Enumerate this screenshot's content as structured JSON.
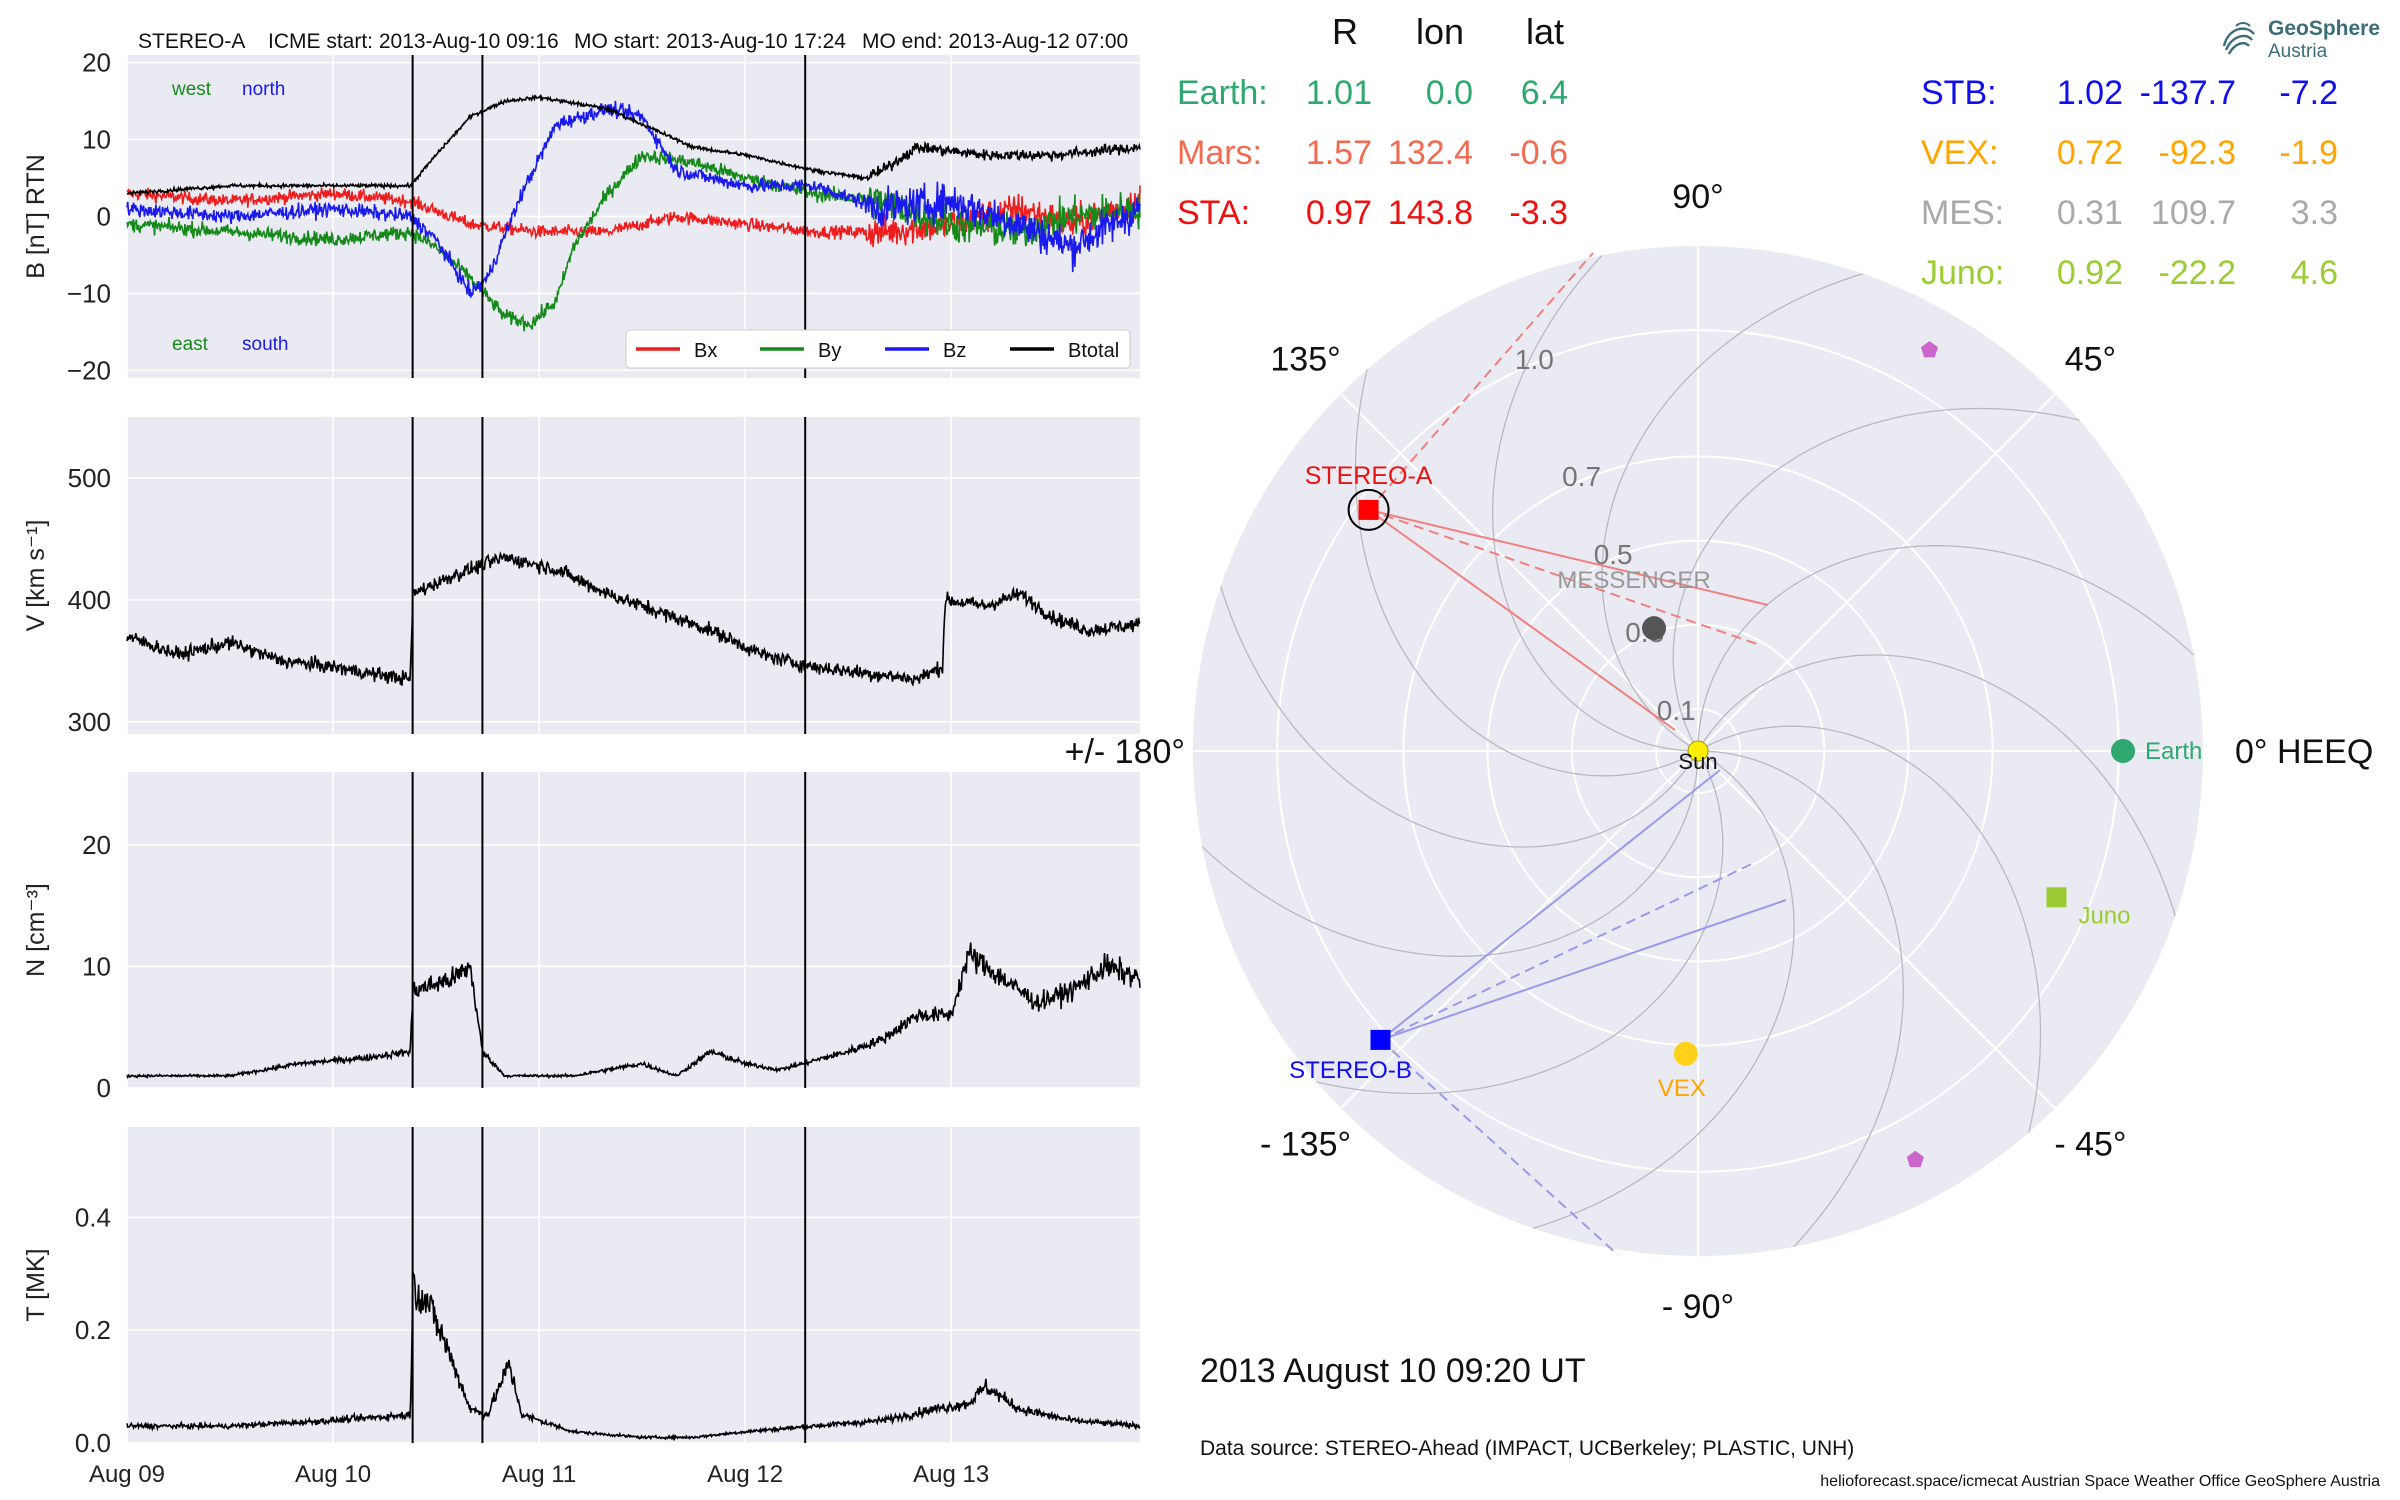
{
  "header": {
    "spacecraft": "STEREO-A",
    "icme_start": "ICME start: 2013-Aug-10 09:16",
    "mo_start": "MO start: 2013-Aug-10 17:24",
    "mo_end": "MO end: 2013-Aug-12 07:00"
  },
  "brand": {
    "name": "GeoSphere",
    "sub": "Austria"
  },
  "chart_data": [
    {
      "type": "line",
      "panel": "magnetic-field",
      "ylabel": "B [nT] RTN",
      "ylim": [
        -21,
        21
      ],
      "yticks": [
        "20",
        "10",
        "0",
        "−10",
        "−20"
      ],
      "ytick_values": [
        20,
        10,
        0,
        -10,
        -20
      ],
      "annotations": {
        "west": "west",
        "north": "north",
        "east": "east",
        "south": "south"
      },
      "legend": {
        "placement": "lower-right",
        "entries": [
          "Bx",
          "By",
          "Bz",
          "Btotal"
        ]
      },
      "x_range_days": [
        "2013-08-09 00:00",
        "2013-08-13 21:00"
      ],
      "event_lines": [
        "2013-08-10 09:16",
        "2013-08-10 17:24",
        "2013-08-12 07:00"
      ],
      "series": [
        {
          "name": "Bx",
          "color": "#ee1c1c",
          "anchors": [
            [
              0,
              3
            ],
            [
              12,
              2
            ],
            [
              24,
              3
            ],
            [
              33,
              2
            ],
            [
              40,
              -1
            ],
            [
              48,
              -2
            ],
            [
              56,
              -2
            ],
            [
              64,
              0
            ],
            [
              72,
              -1
            ],
            [
              80,
              -2
            ],
            [
              88,
              -2
            ],
            [
              96,
              -1
            ],
            [
              104,
              1
            ],
            [
              110,
              -1
            ],
            [
              118,
              2
            ]
          ]
        },
        {
          "name": "By",
          "color": "#158a1a",
          "anchors": [
            [
              0,
              -1
            ],
            [
              12,
              -2
            ],
            [
              24,
              -3
            ],
            [
              33,
              -2
            ],
            [
              36,
              -4
            ],
            [
              40,
              -8
            ],
            [
              44,
              -13
            ],
            [
              47,
              -14
            ],
            [
              50,
              -11
            ],
            [
              52,
              -4
            ],
            [
              56,
              3
            ],
            [
              60,
              8
            ],
            [
              66,
              7
            ],
            [
              72,
              5
            ],
            [
              80,
              3
            ],
            [
              88,
              2
            ],
            [
              96,
              -1
            ],
            [
              104,
              -2
            ],
            [
              110,
              0
            ],
            [
              118,
              1
            ]
          ]
        },
        {
          "name": "Bz",
          "color": "#1a1aee",
          "anchors": [
            [
              0,
              1
            ],
            [
              12,
              0
            ],
            [
              24,
              1
            ],
            [
              33,
              0
            ],
            [
              36,
              -3
            ],
            [
              40,
              -10
            ],
            [
              42,
              -8
            ],
            [
              46,
              3
            ],
            [
              50,
              12
            ],
            [
              56,
              14
            ],
            [
              60,
              13
            ],
            [
              64,
              6
            ],
            [
              72,
              4
            ],
            [
              80,
              4
            ],
            [
              88,
              1
            ],
            [
              96,
              2
            ],
            [
              104,
              -1
            ],
            [
              110,
              -4
            ],
            [
              118,
              1
            ]
          ]
        },
        {
          "name": "Btotal",
          "color": "#000000",
          "anchors": [
            [
              0,
              3
            ],
            [
              12,
              4
            ],
            [
              24,
              4
            ],
            [
              33,
              4
            ],
            [
              36,
              8
            ],
            [
              40,
              13
            ],
            [
              44,
              15
            ],
            [
              48,
              15.5
            ],
            [
              56,
              14
            ],
            [
              62,
              11
            ],
            [
              66,
              9
            ],
            [
              72,
              8
            ],
            [
              80,
              6
            ],
            [
              86,
              5
            ],
            [
              88,
              6
            ],
            [
              92,
              9
            ],
            [
              100,
              8
            ],
            [
              108,
              8
            ],
            [
              118,
              9
            ]
          ]
        }
      ]
    },
    {
      "type": "line",
      "panel": "speed",
      "ylabel": "V [km s⁻¹]",
      "ylim": [
        290,
        550
      ],
      "yticks": [
        "500",
        "400",
        "300"
      ],
      "ytick_values": [
        500,
        400,
        300
      ],
      "series": [
        {
          "name": "",
          "color": "#000000",
          "anchors": [
            [
              0,
              370
            ],
            [
              6,
              355
            ],
            [
              12,
              365
            ],
            [
              18,
              350
            ],
            [
              24,
              345
            ],
            [
              28,
              340
            ],
            [
              33,
              335
            ],
            [
              33.3,
              405
            ],
            [
              38,
              420
            ],
            [
              44,
              435
            ],
            [
              50,
              425
            ],
            [
              56,
              405
            ],
            [
              62,
              390
            ],
            [
              68,
              375
            ],
            [
              74,
              355
            ],
            [
              80,
              345
            ],
            [
              86,
              340
            ],
            [
              92,
              335
            ],
            [
              95,
              345
            ],
            [
              95.3,
              400
            ],
            [
              100,
              395
            ],
            [
              104,
              405
            ],
            [
              108,
              385
            ],
            [
              112,
              375
            ],
            [
              118,
              380
            ]
          ]
        }
      ]
    },
    {
      "type": "line",
      "panel": "density",
      "ylabel": "N [cm⁻³]",
      "ylim": [
        0,
        26
      ],
      "yticks": [
        "20",
        "10",
        "0"
      ],
      "ytick_values": [
        20,
        10,
        0
      ],
      "series": [
        {
          "name": "",
          "color": "#000000",
          "anchors": [
            [
              0,
              1
            ],
            [
              12,
              1
            ],
            [
              20,
              2
            ],
            [
              28,
              2.5
            ],
            [
              33,
              3
            ],
            [
              33.3,
              8
            ],
            [
              38,
              9
            ],
            [
              40,
              10
            ],
            [
              41.4,
              3
            ],
            [
              44,
              1
            ],
            [
              52,
              1
            ],
            [
              60,
              2
            ],
            [
              64,
              1
            ],
            [
              68,
              3
            ],
            [
              72,
              2
            ],
            [
              76,
              1.5
            ],
            [
              84,
              3
            ],
            [
              88,
              4
            ],
            [
              92,
              6
            ],
            [
              96,
              6
            ],
            [
              98,
              11
            ],
            [
              102,
              9
            ],
            [
              106,
              7
            ],
            [
              110,
              8
            ],
            [
              114,
              10
            ],
            [
              118,
              9
            ]
          ]
        }
      ]
    },
    {
      "type": "line",
      "panel": "temperature",
      "ylabel": "T [MK]",
      "ylim": [
        0,
        0.56
      ],
      "yticks": [
        "0.4",
        "0.2",
        "0.0"
      ],
      "ytick_values": [
        0.4,
        0.2,
        0.0
      ],
      "xticks": [
        "Aug 09",
        "Aug 10",
        "Aug 11",
        "Aug 12",
        "Aug 13"
      ],
      "xtick_hours": [
        0,
        24,
        48,
        72,
        96
      ],
      "series": [
        {
          "name": "",
          "color": "#000000",
          "anchors": [
            [
              0,
              0.03
            ],
            [
              12,
              0.03
            ],
            [
              24,
              0.04
            ],
            [
              33,
              0.05
            ],
            [
              33.3,
              0.28
            ],
            [
              35,
              0.25
            ],
            [
              37,
              0.18
            ],
            [
              40,
              0.06
            ],
            [
              42,
              0.05
            ],
            [
              44.5,
              0.14
            ],
            [
              46,
              0.05
            ],
            [
              52,
              0.02
            ],
            [
              60,
              0.01
            ],
            [
              66,
              0.01
            ],
            [
              72,
              0.02
            ],
            [
              80,
              0.03
            ],
            [
              88,
              0.04
            ],
            [
              94,
              0.06
            ],
            [
              98,
              0.07
            ],
            [
              100,
              0.1
            ],
            [
              104,
              0.06
            ],
            [
              110,
              0.04
            ],
            [
              118,
              0.03
            ]
          ]
        }
      ]
    },
    {
      "type": "scatter",
      "panel": "polar-positions",
      "rlim": [
        0,
        1.2
      ],
      "r_tick_labels": [
        "0.1",
        "0.3",
        "0.5",
        "0.7",
        "1.0"
      ],
      "r_tick_values": [
        0.1,
        0.3,
        0.5,
        0.7,
        1.0
      ],
      "angle_labels": [
        {
          "text": "0° HEEQ",
          "deg": 0
        },
        {
          "text": "45°",
          "deg": 45
        },
        {
          "text": "90°",
          "deg": 90
        },
        {
          "text": "135°",
          "deg": 135
        },
        {
          "text": "+/- 180°",
          "deg": 180
        },
        {
          "text": "- 135°",
          "deg": -135
        },
        {
          "text": "- 90°",
          "deg": -90
        },
        {
          "text": "- 45°",
          "deg": -45
        }
      ],
      "bodies": [
        {
          "label": "Sun",
          "r": 0.0,
          "lon": 0,
          "color": "#ffee00",
          "marker": "circle"
        },
        {
          "label": "Earth",
          "r": 1.01,
          "lon": 0.0,
          "color": "#2ea86f",
          "marker": "circle"
        },
        {
          "label": "STEREO-A",
          "r": 0.97,
          "lon": 143.8,
          "color": "#ff0000",
          "marker": "square"
        },
        {
          "label": "STEREO-B",
          "r": 1.02,
          "lon": -137.7,
          "color": "#0000ff",
          "marker": "square"
        },
        {
          "label": "VEX",
          "r": 0.72,
          "lon": -92.3,
          "color": "#ffd11a",
          "marker": "circle"
        },
        {
          "label": "MESSENGER",
          "r": 0.31,
          "lon": 109.7,
          "color": "#555555",
          "marker": "circle"
        },
        {
          "label": "Juno",
          "r": 0.92,
          "lon": -22.2,
          "color": "#99cc33",
          "marker": "square"
        },
        {
          "label": "",
          "r": 1.1,
          "lon": 60,
          "color": "#cc66cc",
          "marker": "pentagon"
        },
        {
          "label": "",
          "r": 1.1,
          "lon": -62,
          "color": "#cc66cc",
          "marker": "pentagon"
        }
      ]
    }
  ],
  "positions_table": {
    "headers": [
      "R",
      "lon",
      "lat"
    ],
    "left": [
      {
        "name": "Earth:",
        "r": "1.01",
        "lon": "0.0",
        "lat": "6.4",
        "color": "#2ea86f"
      },
      {
        "name": "Mars:",
        "r": "1.57",
        "lon": "132.4",
        "lat": "-0.6",
        "color": "#f26a4f"
      },
      {
        "name": "STA:",
        "r": "0.97",
        "lon": "143.8",
        "lat": "-3.3",
        "color": "#ee1111"
      }
    ],
    "right": [
      {
        "name": "STB:",
        "r": "1.02",
        "lon": "-137.7",
        "lat": "-7.2",
        "color": "#1010ee"
      },
      {
        "name": "VEX:",
        "r": "0.72",
        "lon": "-92.3",
        "lat": "-1.9",
        "color": "#ffa500"
      },
      {
        "name": "MES:",
        "r": "0.31",
        "lon": "109.7",
        "lat": "3.3",
        "color": "#a9a9a9"
      },
      {
        "name": "Juno:",
        "r": "0.92",
        "lon": "-22.2",
        "lat": "4.6",
        "color": "#9acd32"
      }
    ]
  },
  "footer": {
    "timestamp": "2013 August 10  09:20 UT",
    "data_source": "Data source: STEREO-Ahead (IMPACT, UCBerkeley; PLASTIC, UNH)",
    "credits": "helioforecast.space/icmecat   Austrian Space Weather Office   GeoSphere Austria"
  }
}
